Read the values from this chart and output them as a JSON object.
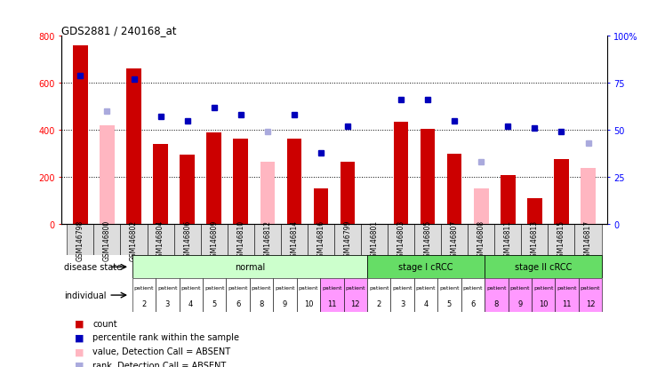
{
  "title": "GDS2881 / 240168_at",
  "samples": [
    "GSM146798",
    "GSM146800",
    "GSM146802",
    "GSM146804",
    "GSM146806",
    "GSM146809",
    "GSM146810",
    "GSM146812",
    "GSM146814",
    "GSM146816",
    "GSM146799",
    "GSM146801",
    "GSM146803",
    "GSM146805",
    "GSM146807",
    "GSM146808",
    "GSM146811",
    "GSM146813",
    "GSM146815",
    "GSM146817"
  ],
  "count_values": [
    760,
    null,
    660,
    340,
    295,
    390,
    365,
    null,
    365,
    150,
    265,
    null,
    435,
    405,
    300,
    null,
    210,
    110,
    275,
    null
  ],
  "count_absent": [
    null,
    420,
    null,
    null,
    null,
    null,
    null,
    265,
    null,
    null,
    null,
    null,
    null,
    null,
    null,
    150,
    null,
    null,
    null,
    240
  ],
  "rank_values": [
    79,
    null,
    77,
    57,
    55,
    62,
    58,
    null,
    58,
    38,
    52,
    null,
    66,
    66,
    55,
    null,
    52,
    51,
    49,
    null
  ],
  "rank_absent": [
    null,
    60,
    null,
    null,
    null,
    null,
    null,
    49,
    null,
    null,
    null,
    null,
    null,
    null,
    null,
    33,
    null,
    null,
    null,
    43
  ],
  "individual_labels_top": [
    "patient",
    "patient",
    "patient",
    "patient",
    "patient",
    "patient",
    "patient",
    "patient",
    "patient",
    "patient",
    "patient",
    "patient",
    "patient",
    "patient",
    "patient",
    "patient",
    "patient",
    "patient",
    "patient",
    "patient"
  ],
  "individual_labels_bot": [
    "2",
    "3",
    "4",
    "5",
    "6",
    "8",
    "9",
    "10",
    "11",
    "12",
    "2",
    "3",
    "4",
    "5",
    "6",
    "8",
    "9",
    "10",
    "11",
    "12"
  ],
  "individual_colors": [
    "#ffffff",
    "#ffffff",
    "#ffffff",
    "#ffffff",
    "#ffffff",
    "#ffffff",
    "#ffffff",
    "#ffffff",
    "#FF99FF",
    "#FF99FF",
    "#ffffff",
    "#ffffff",
    "#ffffff",
    "#ffffff",
    "#ffffff",
    "#FF99FF",
    "#FF99FF",
    "#FF99FF",
    "#FF99FF",
    "#FF99FF"
  ],
  "disease_groups": [
    {
      "label": "normal",
      "start": 0,
      "end": 9,
      "color": "#CCFFCC"
    },
    {
      "label": "stage I cRCC",
      "start": 10,
      "end": 14,
      "color": "#66DD66"
    },
    {
      "label": "stage II cRCC",
      "start": 15,
      "end": 19,
      "color": "#66DD66"
    }
  ],
  "ylim_left": [
    0,
    800
  ],
  "ylim_right": [
    0,
    100
  ],
  "yticks_left": [
    0,
    200,
    400,
    600,
    800
  ],
  "yticks_right": [
    0,
    25,
    50,
    75,
    100
  ],
  "yticklabels_right": [
    "0",
    "25",
    "50",
    "75",
    "100%"
  ],
  "count_color": "#CC0000",
  "count_absent_color": "#FFB6C1",
  "rank_color": "#0000BB",
  "rank_absent_color": "#AAAADD",
  "bg_color": "#FFFFFF",
  "xtick_bg": "#DDDDDD"
}
